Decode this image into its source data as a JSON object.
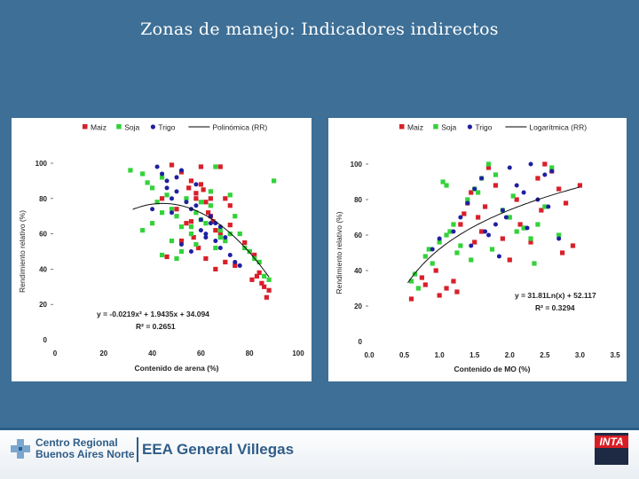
{
  "slide": {
    "title": "Zonas de manejo: Indicadores indirectos",
    "footer": {
      "org_line1": "Centro Regional",
      "org_line2": "Buenos Aires Norte",
      "station": "EEA General Villegas",
      "badge": "INTA"
    }
  },
  "chart_data": [
    {
      "type": "scatter",
      "legend": [
        "Maiz",
        "Soja",
        "Trigo",
        "Polinómica (RR)"
      ],
      "legend_position": "top",
      "xlabel": "Contenido de arena (%)",
      "ylabel": "Rendimiento relativo (%)",
      "xlim": [
        0,
        100
      ],
      "ylim": [
        0,
        100
      ],
      "xticks": [
        "0",
        "20",
        "40",
        "60",
        "80",
        "100"
      ],
      "yticks": [
        "0",
        "20",
        "40",
        "60",
        "80",
        "100"
      ],
      "equation": "y = -0.0219x² + 1.9435x + 34.094",
      "r2": "R² = 0.2651",
      "trend": {
        "kind": "poly",
        "a": -0.0219,
        "b": 1.9435,
        "c": 34.094,
        "x_range": [
          32,
          88
        ]
      },
      "series": [
        {
          "name": "Maiz",
          "color": "#d8202a",
          "shape": "square",
          "x": [
            48,
            52,
            55,
            56,
            58,
            60,
            61,
            62,
            63,
            64,
            65,
            66,
            68,
            70,
            72,
            50,
            54,
            57,
            59,
            62,
            66,
            70,
            74,
            78,
            80,
            82,
            84,
            86,
            88,
            87,
            85,
            83,
            81,
            72,
            68,
            64,
            60,
            58,
            56,
            52,
            46,
            44
          ],
          "y": [
            99,
            95,
            86,
            90,
            83,
            98,
            85,
            78,
            72,
            80,
            67,
            62,
            98,
            80,
            76,
            74,
            66,
            58,
            52,
            46,
            40,
            44,
            42,
            55,
            50,
            48,
            38,
            30,
            28,
            24,
            32,
            36,
            34,
            65,
            60,
            70,
            88,
            80,
            67,
            56,
            47,
            80
          ]
        },
        {
          "name": "Soja",
          "color": "#33d23a",
          "shape": "square",
          "x": [
            31,
            36,
            38,
            40,
            42,
            44,
            46,
            48,
            50,
            52,
            54,
            56,
            58,
            60,
            62,
            64,
            66,
            68,
            70,
            72,
            74,
            76,
            78,
            80,
            82,
            84,
            86,
            88,
            90,
            36,
            40,
            44,
            48,
            52,
            56,
            60,
            64,
            68,
            72,
            44,
            50,
            58,
            66
          ],
          "y": [
            96,
            94,
            89,
            86,
            78,
            92,
            82,
            74,
            70,
            64,
            80,
            60,
            72,
            78,
            66,
            84,
            98,
            62,
            56,
            82,
            70,
            60,
            52,
            50,
            46,
            44,
            36,
            34,
            90,
            62,
            66,
            72,
            56,
            50,
            64,
            68,
            76,
            58,
            60,
            48,
            46,
            54,
            52
          ]
        },
        {
          "name": "Trigo",
          "color": "#1f1fa0",
          "shape": "circle",
          "x": [
            42,
            44,
            46,
            48,
            50,
            52,
            54,
            56,
            58,
            60,
            62,
            64,
            66,
            68,
            70,
            72,
            74,
            76,
            48,
            52,
            56,
            60,
            64,
            68,
            50,
            58,
            62,
            66,
            40,
            46
          ],
          "y": [
            98,
            94,
            86,
            80,
            92,
            96,
            78,
            74,
            88,
            68,
            60,
            66,
            56,
            64,
            58,
            48,
            44,
            42,
            72,
            54,
            50,
            62,
            70,
            52,
            84,
            76,
            58,
            66,
            74,
            90
          ]
        }
      ]
    },
    {
      "type": "scatter",
      "legend": [
        "Maiz",
        "Soja",
        "Trigo",
        "Logarítmica (RR)"
      ],
      "legend_position": "top",
      "xlabel": "Contenido de MO (%)",
      "ylabel": "Rendimiento relativo (%)",
      "xlim": [
        0,
        3.5
      ],
      "ylim": [
        0,
        100
      ],
      "xticks": [
        "0.0",
        "0.5",
        "1.0",
        "1.5",
        "2.0",
        "2.5",
        "3.0",
        "3.5"
      ],
      "yticks": [
        "0",
        "20",
        "40",
        "60",
        "80",
        "100"
      ],
      "equation": "y = 31.81Ln(x) + 52.117",
      "r2": "R² = 0.3294",
      "trend": {
        "kind": "log",
        "a": 31.81,
        "b": 52.117,
        "x_range": [
          0.55,
          3.0
        ]
      },
      "series": [
        {
          "name": "Maiz",
          "color": "#d8202a",
          "shape": "square",
          "x": [
            0.6,
            0.75,
            0.8,
            1.0,
            1.1,
            1.2,
            1.3,
            1.35,
            1.4,
            1.45,
            1.5,
            1.6,
            1.7,
            1.8,
            1.9,
            2.0,
            2.1,
            2.2,
            2.3,
            2.4,
            2.5,
            2.6,
            2.7,
            2.8,
            3.0,
            2.75,
            2.9,
            1.55,
            1.65,
            2.15,
            2.45,
            0.95,
            1.25
          ],
          "y": [
            24,
            36,
            32,
            26,
            30,
            34,
            66,
            72,
            78,
            84,
            56,
            62,
            98,
            88,
            58,
            46,
            80,
            64,
            56,
            92,
            100,
            96,
            86,
            78,
            88,
            50,
            54,
            70,
            76,
            66,
            74,
            40,
            28
          ]
        },
        {
          "name": "Soja",
          "color": "#33d23a",
          "shape": "square",
          "x": [
            0.6,
            0.65,
            0.7,
            0.8,
            0.85,
            0.9,
            1.0,
            1.05,
            1.1,
            1.15,
            1.2,
            1.3,
            1.4,
            1.5,
            1.6,
            1.7,
            1.8,
            1.9,
            2.0,
            2.1,
            2.2,
            2.3,
            2.4,
            2.5,
            2.6,
            2.7,
            1.25,
            1.45,
            1.75,
            2.05,
            2.35,
            1.1,
            1.55
          ],
          "y": [
            34,
            38,
            30,
            48,
            52,
            44,
            56,
            90,
            88,
            62,
            66,
            54,
            80,
            86,
            92,
            100,
            94,
            74,
            70,
            62,
            64,
            58,
            66,
            76,
            98,
            60,
            50,
            46,
            52,
            82,
            44,
            60,
            84
          ]
        },
        {
          "name": "Trigo",
          "color": "#1f1fa0",
          "shape": "circle",
          "x": [
            0.9,
            1.0,
            1.2,
            1.3,
            1.4,
            1.5,
            1.6,
            1.7,
            1.8,
            1.9,
            2.0,
            2.1,
            2.2,
            2.3,
            2.4,
            2.5,
            2.6,
            2.7,
            1.45,
            1.65,
            1.95,
            2.25,
            2.55,
            1.85
          ],
          "y": [
            52,
            58,
            62,
            70,
            78,
            86,
            92,
            60,
            66,
            74,
            98,
            88,
            84,
            100,
            80,
            94,
            96,
            58,
            54,
            62,
            70,
            64,
            76,
            48
          ]
        }
      ]
    }
  ]
}
